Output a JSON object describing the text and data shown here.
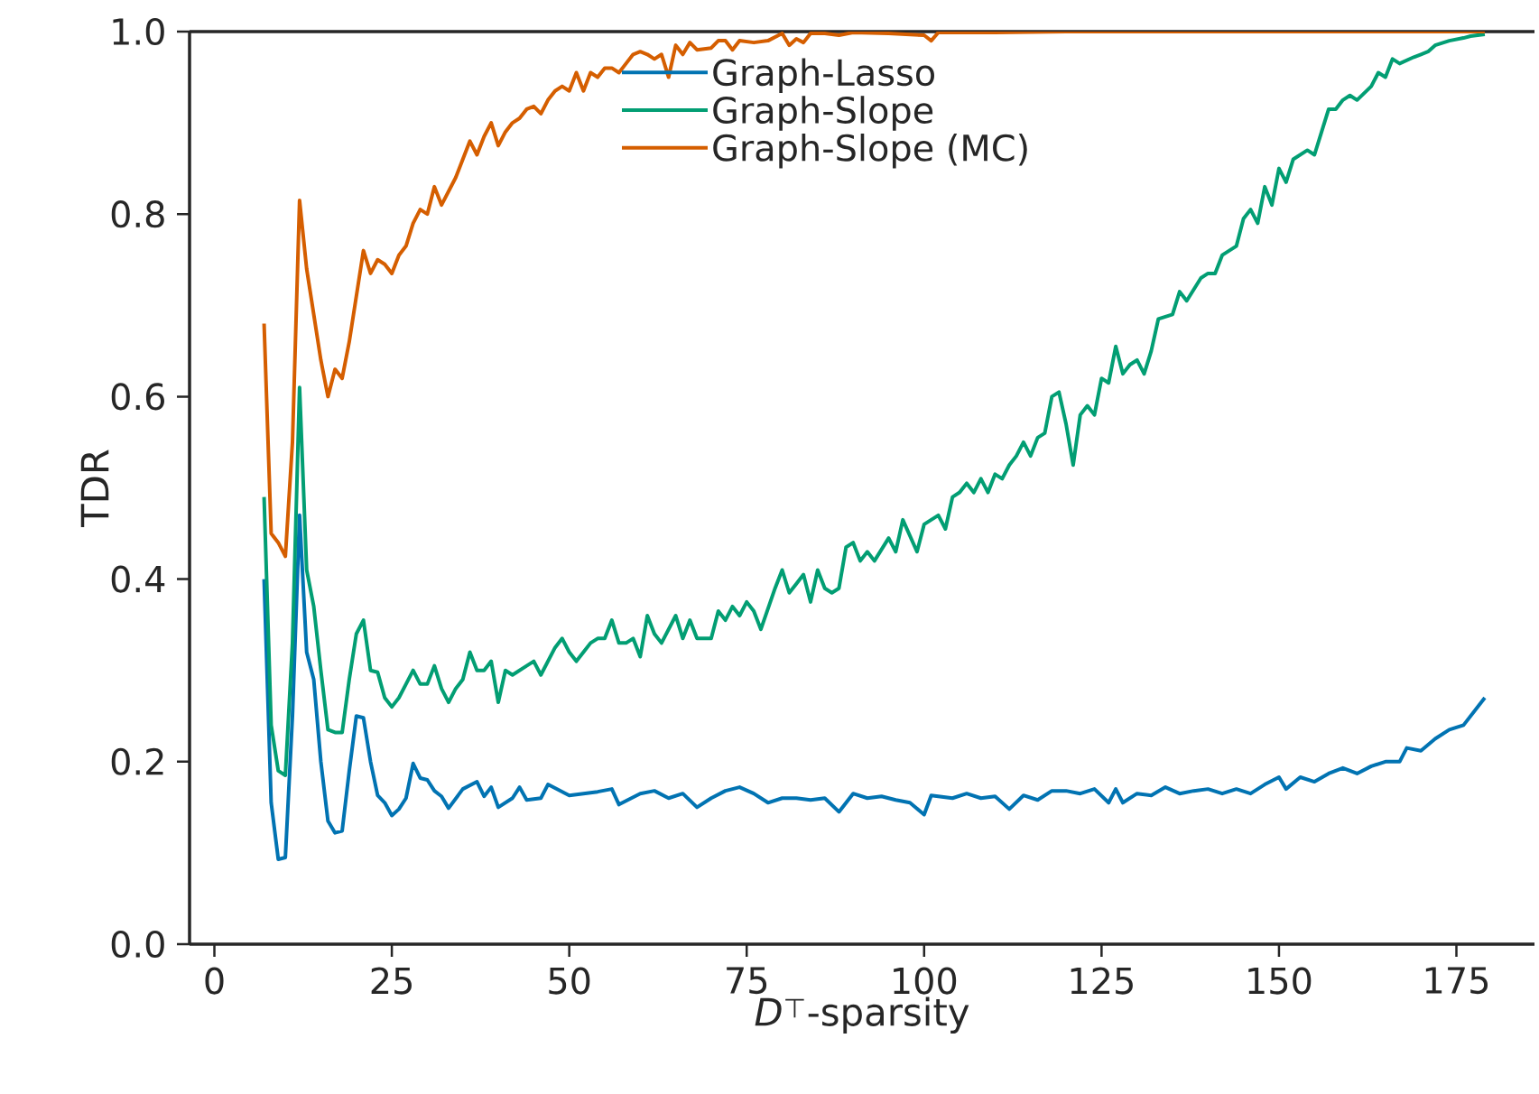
{
  "chart_data": {
    "type": "line",
    "xlabel": "*D*$^{⊤}$-sparsity",
    "ylabel": "TDR",
    "xlim": [
      -3.5,
      186
    ],
    "ylim": [
      0,
      1.0
    ],
    "xticks": [
      0,
      25,
      50,
      75,
      100,
      125,
      150,
      175
    ],
    "yticks": [
      {
        "value": 0,
        "label": "0.0"
      },
      {
        "value": 0.2,
        "label": "0.2"
      },
      {
        "value": 0.4,
        "label": "0.4"
      },
      {
        "value": 0.6,
        "label": "0.6"
      },
      {
        "value": 0.8,
        "label": "0.8"
      },
      {
        "value": 1.0,
        "label": "1.0"
      }
    ],
    "legend": "top",
    "series": [
      {
        "name": "Graph-Lasso",
        "color": "#0173b2",
        "x": [
          7,
          8,
          9,
          10,
          11,
          12,
          13,
          14,
          15,
          16,
          17,
          18,
          19,
          20,
          21,
          22,
          23,
          24,
          25,
          26,
          27,
          28,
          29,
          30,
          31,
          32,
          33,
          35,
          37,
          38,
          39,
          40,
          42,
          43,
          44,
          46,
          47,
          50,
          52,
          54,
          56,
          57,
          60,
          62,
          64,
          66,
          68,
          70,
          72,
          74,
          76,
          78,
          80,
          82,
          84,
          86,
          88,
          90,
          92,
          94,
          96,
          98,
          100,
          101,
          104,
          106,
          108,
          110,
          112,
          114,
          116,
          118,
          120,
          122,
          124,
          126,
          127,
          128,
          130,
          132,
          134,
          136,
          138,
          140,
          142,
          144,
          146,
          148,
          150,
          151,
          153,
          155,
          157,
          159,
          161,
          163,
          165,
          167,
          168,
          170,
          172,
          174,
          176,
          177,
          179
        ],
        "values": [
          0.4,
          0.155,
          0.093,
          0.095,
          0.25,
          0.47,
          0.32,
          0.29,
          0.2,
          0.135,
          0.122,
          0.124,
          0.19,
          0.25,
          0.248,
          0.2,
          0.163,
          0.155,
          0.141,
          0.148,
          0.16,
          0.198,
          0.182,
          0.18,
          0.168,
          0.162,
          0.149,
          0.17,
          0.178,
          0.162,
          0.172,
          0.15,
          0.16,
          0.172,
          0.158,
          0.16,
          0.175,
          0.163,
          0.165,
          0.167,
          0.17,
          0.153,
          0.165,
          0.168,
          0.16,
          0.165,
          0.15,
          0.16,
          0.168,
          0.172,
          0.165,
          0.155,
          0.16,
          0.16,
          0.158,
          0.16,
          0.145,
          0.165,
          0.16,
          0.162,
          0.158,
          0.155,
          0.142,
          0.163,
          0.16,
          0.165,
          0.16,
          0.162,
          0.148,
          0.163,
          0.158,
          0.168,
          0.168,
          0.165,
          0.17,
          0.155,
          0.17,
          0.155,
          0.165,
          0.163,
          0.172,
          0.165,
          0.168,
          0.17,
          0.165,
          0.17,
          0.165,
          0.175,
          0.183,
          0.17,
          0.183,
          0.178,
          0.187,
          0.193,
          0.187,
          0.195,
          0.2,
          0.2,
          0.215,
          0.212,
          0.225,
          0.235,
          0.24,
          0.25,
          0.27
        ]
      },
      {
        "name": "Graph-Slope",
        "color": "#029e73",
        "x": [
          7,
          8,
          9,
          10,
          11,
          12,
          13,
          14,
          15,
          16,
          17,
          18,
          19,
          20,
          21,
          22,
          23,
          24,
          25,
          26,
          27,
          28,
          29,
          30,
          31,
          32,
          33,
          34,
          35,
          36,
          37,
          38,
          39,
          40,
          41,
          42,
          43,
          44,
          45,
          46,
          47,
          48,
          49,
          50,
          51,
          52,
          53,
          54,
          55,
          56,
          57,
          58,
          59,
          60,
          61,
          62,
          63,
          65,
          66,
          67,
          68,
          70,
          71,
          72,
          73,
          74,
          75,
          76,
          77,
          79,
          80,
          81,
          82,
          83,
          84,
          85,
          86,
          87,
          88,
          89,
          90,
          91,
          92,
          93,
          95,
          96,
          97,
          99,
          100,
          101,
          102,
          103,
          104,
          105,
          106,
          107,
          108,
          109,
          110,
          111,
          112,
          113,
          114,
          115,
          116,
          117,
          118,
          119,
          120,
          121,
          122,
          123,
          124,
          125,
          126,
          127,
          128,
          129,
          130,
          131,
          132,
          133,
          135,
          136,
          137,
          139,
          140,
          141,
          142,
          143,
          144,
          145,
          146,
          147,
          148,
          149,
          150,
          151,
          152,
          153,
          154,
          155,
          156,
          157,
          158,
          159,
          160,
          161,
          163,
          164,
          165,
          166,
          167,
          169,
          170,
          171,
          172,
          174,
          176,
          177,
          179
        ],
        "values": [
          0.49,
          0.24,
          0.19,
          0.185,
          0.33,
          0.61,
          0.41,
          0.37,
          0.3,
          0.235,
          0.232,
          0.232,
          0.29,
          0.34,
          0.355,
          0.3,
          0.298,
          0.27,
          0.26,
          0.27,
          0.285,
          0.3,
          0.285,
          0.285,
          0.305,
          0.28,
          0.265,
          0.28,
          0.29,
          0.32,
          0.3,
          0.3,
          0.31,
          0.265,
          0.3,
          0.295,
          0.3,
          0.305,
          0.31,
          0.295,
          0.31,
          0.325,
          0.335,
          0.32,
          0.31,
          0.32,
          0.33,
          0.335,
          0.335,
          0.355,
          0.33,
          0.33,
          0.335,
          0.315,
          0.36,
          0.34,
          0.33,
          0.36,
          0.335,
          0.355,
          0.335,
          0.335,
          0.365,
          0.355,
          0.37,
          0.36,
          0.375,
          0.365,
          0.345,
          0.39,
          0.41,
          0.385,
          0.395,
          0.405,
          0.375,
          0.41,
          0.39,
          0.385,
          0.39,
          0.435,
          0.44,
          0.42,
          0.43,
          0.42,
          0.445,
          0.43,
          0.465,
          0.43,
          0.46,
          0.465,
          0.47,
          0.455,
          0.49,
          0.495,
          0.505,
          0.495,
          0.51,
          0.495,
          0.515,
          0.51,
          0.525,
          0.535,
          0.55,
          0.535,
          0.555,
          0.56,
          0.6,
          0.605,
          0.57,
          0.525,
          0.58,
          0.59,
          0.58,
          0.62,
          0.615,
          0.655,
          0.625,
          0.635,
          0.64,
          0.625,
          0.65,
          0.685,
          0.69,
          0.715,
          0.705,
          0.73,
          0.735,
          0.735,
          0.755,
          0.76,
          0.765,
          0.795,
          0.805,
          0.79,
          0.83,
          0.81,
          0.85,
          0.835,
          0.86,
          0.865,
          0.87,
          0.865,
          0.89,
          0.915,
          0.915,
          0.925,
          0.93,
          0.925,
          0.94,
          0.955,
          0.95,
          0.97,
          0.965,
          0.972,
          0.975,
          0.978,
          0.985,
          0.99,
          0.993,
          0.995,
          0.997
        ]
      },
      {
        "name": "Graph-Slope (MC)",
        "color": "#d55e00",
        "x": [
          7,
          8,
          9,
          10,
          11,
          12,
          13,
          14,
          15,
          16,
          17,
          18,
          19,
          20,
          21,
          22,
          23,
          24,
          25,
          26,
          27,
          28,
          29,
          30,
          31,
          32,
          33,
          34,
          35,
          36,
          37,
          38,
          39,
          40,
          41,
          42,
          43,
          44,
          45,
          46,
          47,
          48,
          49,
          50,
          51,
          52,
          53,
          54,
          55,
          56,
          57,
          58,
          59,
          60,
          61,
          62,
          63,
          64,
          65,
          66,
          67,
          68,
          70,
          71,
          72,
          73,
          74,
          76,
          78,
          80,
          81,
          82,
          83,
          84,
          86,
          88,
          90,
          95,
          100,
          101,
          102,
          110,
          120,
          130,
          140,
          150,
          160,
          170,
          179
        ],
        "values": [
          0.68,
          0.45,
          0.44,
          0.425,
          0.55,
          0.815,
          0.74,
          0.69,
          0.64,
          0.6,
          0.63,
          0.62,
          0.66,
          0.71,
          0.76,
          0.735,
          0.75,
          0.745,
          0.735,
          0.755,
          0.765,
          0.79,
          0.805,
          0.8,
          0.83,
          0.81,
          0.825,
          0.84,
          0.86,
          0.88,
          0.865,
          0.885,
          0.9,
          0.875,
          0.89,
          0.9,
          0.905,
          0.915,
          0.918,
          0.91,
          0.925,
          0.935,
          0.94,
          0.935,
          0.955,
          0.935,
          0.955,
          0.95,
          0.96,
          0.96,
          0.955,
          0.965,
          0.975,
          0.978,
          0.975,
          0.97,
          0.975,
          0.95,
          0.985,
          0.975,
          0.988,
          0.98,
          0.982,
          0.99,
          0.99,
          0.98,
          0.99,
          0.988,
          0.99,
          0.998,
          0.985,
          0.992,
          0.988,
          0.998,
          0.998,
          0.996,
          0.999,
          0.998,
          0.996,
          0.99,
          0.999,
          0.999,
          1.0,
          1.0,
          1.0,
          1.0,
          1.0,
          1.0,
          1.0
        ]
      }
    ]
  }
}
